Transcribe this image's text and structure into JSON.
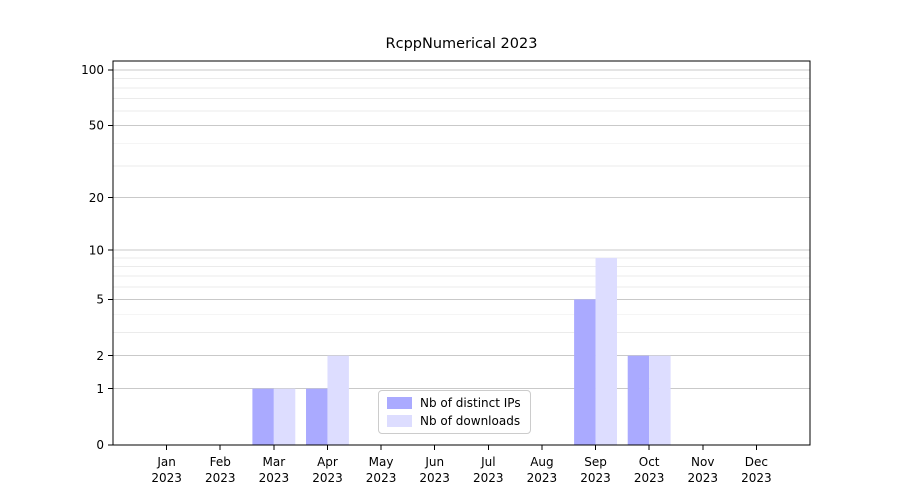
{
  "chart_data": {
    "type": "bar",
    "title": "RcppNumerical 2023",
    "categories": [
      "Jan",
      "Feb",
      "Mar",
      "Apr",
      "May",
      "Jun",
      "Jul",
      "Aug",
      "Sep",
      "Oct",
      "Nov",
      "Dec"
    ],
    "x_year": "2023",
    "y_scale": "log1p",
    "y_ticks": [
      0,
      1,
      2,
      5,
      10,
      20,
      50,
      100
    ],
    "y_minor_gridlines": [
      3,
      4,
      6,
      7,
      8,
      9,
      30,
      40,
      60,
      70,
      80,
      90
    ],
    "ylim": [
      0,
      110
    ],
    "grid": "horizontal",
    "legend_position": "lower center",
    "series": [
      {
        "name": "Nb of distinct IPs",
        "color": "#aaaaff",
        "values": [
          0,
          0,
          1,
          1,
          0,
          0,
          0,
          0,
          5,
          2,
          0,
          0
        ]
      },
      {
        "name": "Nb of downloads",
        "color": "#ddddff",
        "values": [
          0,
          0,
          1,
          2,
          0,
          0,
          0,
          0,
          9,
          2,
          0,
          0
        ]
      }
    ],
    "colors": {
      "spine": "#000000",
      "tick_label": "#000000",
      "grid_major": "#c9c9c9",
      "grid_minor": "#ebebeb"
    }
  }
}
